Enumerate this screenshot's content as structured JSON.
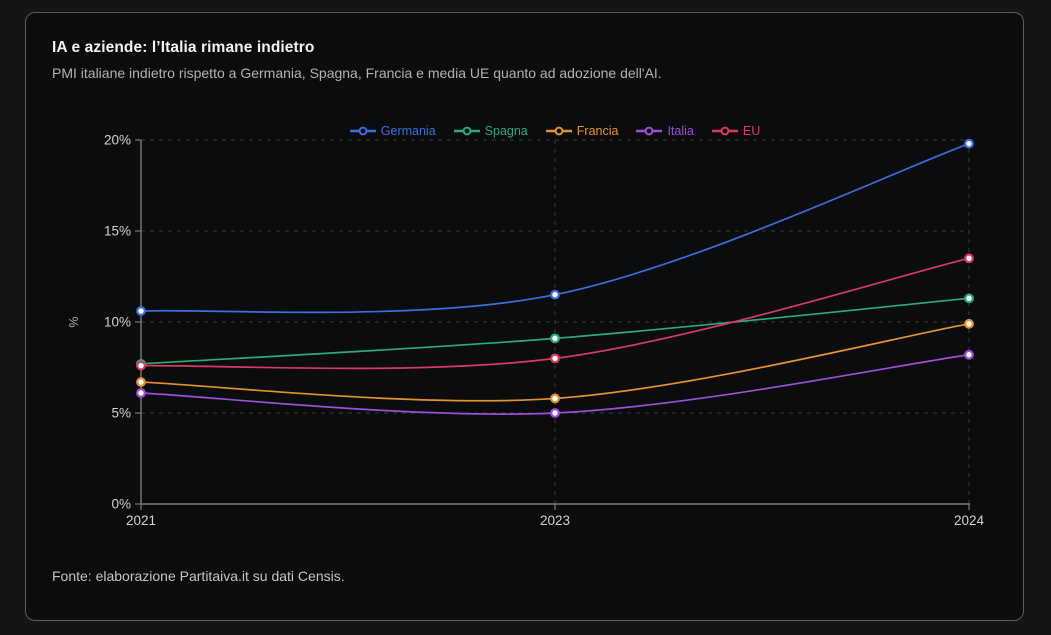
{
  "header": {
    "title": "IA e aziende: l’Italia rimane indietro",
    "subtitle": "PMI italiane indietro rispetto a Germania, Spagna, Francia e media UE quanto ad adozione dell'AI."
  },
  "footer": {
    "source": "Fonte: elaborazione Partitaiva.it su dati Censis."
  },
  "theme": {
    "page_bg": "#151515",
    "card_bg": "#0b0c0e",
    "card_border": "#5c5c5c",
    "axis_color": "#7a7a7a",
    "grid_color": "#3a3a3a",
    "tick_label_color": "#d2d2d2",
    "axis_title_color": "#a8a8a8"
  },
  "chart_data": {
    "type": "line",
    "title": "IA e aziende: l’Italia rimane indietro",
    "subtitle": "PMI italiane indietro rispetto a Germania, Spagna, Francia e media UE quanto ad adozione dell'AI.",
    "categories": [
      "2021",
      "2023",
      "2024"
    ],
    "series": [
      {
        "name": "Germania",
        "color": "#3d6edb",
        "values": [
          10.6,
          11.5,
          19.8
        ]
      },
      {
        "name": "Spagna",
        "color": "#2bab7c",
        "values": [
          7.7,
          9.1,
          11.3
        ]
      },
      {
        "name": "Francia",
        "color": "#e4932f",
        "values": [
          6.7,
          5.8,
          9.9
        ]
      },
      {
        "name": "Italia",
        "color": "#9c4fd7",
        "values": [
          6.1,
          5.0,
          8.2
        ]
      },
      {
        "name": "EU",
        "color": "#d93a64",
        "values": [
          7.6,
          8.0,
          13.5
        ]
      }
    ],
    "xlabel": "",
    "ylabel": "%",
    "ylim": [
      0,
      20
    ],
    "yticks": [
      0,
      5,
      10,
      15,
      20
    ],
    "ytick_labels": [
      "0%",
      "5%",
      "10%",
      "15%",
      "20%"
    ],
    "grid": "dashed",
    "legend_position": "top-center",
    "marker_style": "white-filled ring dots",
    "source": "Fonte: elaborazione Partitaiva.it su dati Censis."
  }
}
